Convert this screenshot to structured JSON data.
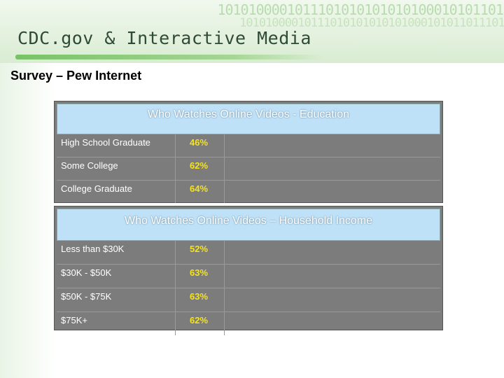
{
  "header": {
    "title": "CDC.gov & Interactive Media",
    "binary_line1": "10101000010111010101010101000101011010",
    "binary_line2": "101010000101110101010101010001010110111011"
  },
  "slide": {
    "title": "Survey – Pew Internet"
  },
  "education": {
    "title": "Who Watches Online Videos - Education",
    "rows": [
      {
        "label": "High School Graduate",
        "value": "46%"
      },
      {
        "label": "Some College",
        "value": "62%"
      },
      {
        "label": "College Graduate",
        "value": "64%"
      }
    ]
  },
  "income": {
    "title": "Who Watches Online Videos – Household Income",
    "rows": [
      {
        "label": "Less than $30K",
        "value": "52%"
      },
      {
        "label": "$30K - $50K",
        "value": "63%"
      },
      {
        "label": "$50K - $75K",
        "value": "63%"
      },
      {
        "label": "$75K+",
        "value": "62%"
      }
    ]
  },
  "colors": {
    "header_bg": "#d9ecd2",
    "header_text": "#2f4a36",
    "table_bg": "#7c7c7c",
    "table_header_bg": "#bfe1f8",
    "value_text": "#f5e31a"
  }
}
